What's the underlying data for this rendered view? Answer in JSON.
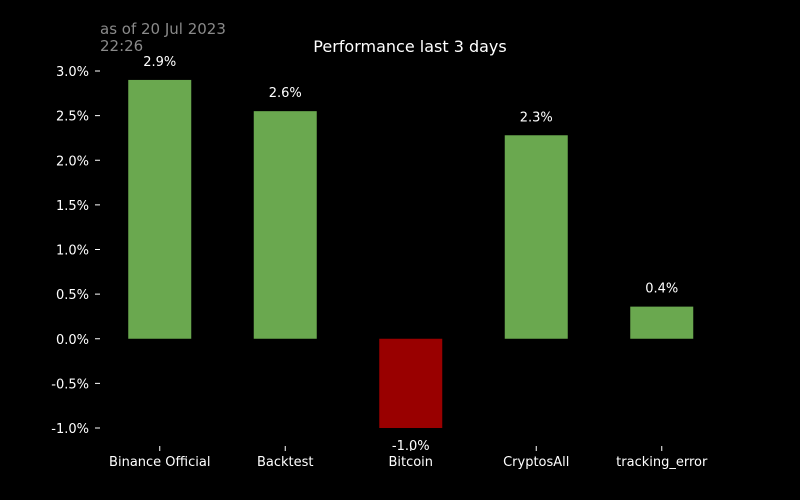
{
  "header": {
    "timestamp": "as of 20 Jul 2023 22:26"
  },
  "colors": {
    "background": "#000000",
    "positive": "#6aa84f",
    "negative": "#990000",
    "text": "#ffffff",
    "muted": "#8a8a8a"
  },
  "chart_data": {
    "type": "bar",
    "title": "Performance last 3 days",
    "xlabel": "",
    "ylabel": "",
    "categories": [
      "Binance Official",
      "Backtest",
      "Bitcoin",
      "CryptosAll",
      "tracking_error"
    ],
    "values": [
      2.9,
      2.55,
      -1.0,
      2.28,
      0.36
    ],
    "data_labels": [
      "2.9%",
      "2.6%",
      "-1.0%",
      "2.3%",
      "0.4%"
    ],
    "ylim": [
      -1.0,
      3.0
    ],
    "yticks": [
      -1.0,
      -0.5,
      0.0,
      0.5,
      1.0,
      1.5,
      2.0,
      2.5,
      3.0
    ],
    "ytick_labels": [
      "-1.0%",
      "-0.5%",
      "0.0%",
      "0.5%",
      "1.0%",
      "1.5%",
      "2.0%",
      "2.5%",
      "3.0%"
    ],
    "grid": false,
    "legend": "none"
  }
}
